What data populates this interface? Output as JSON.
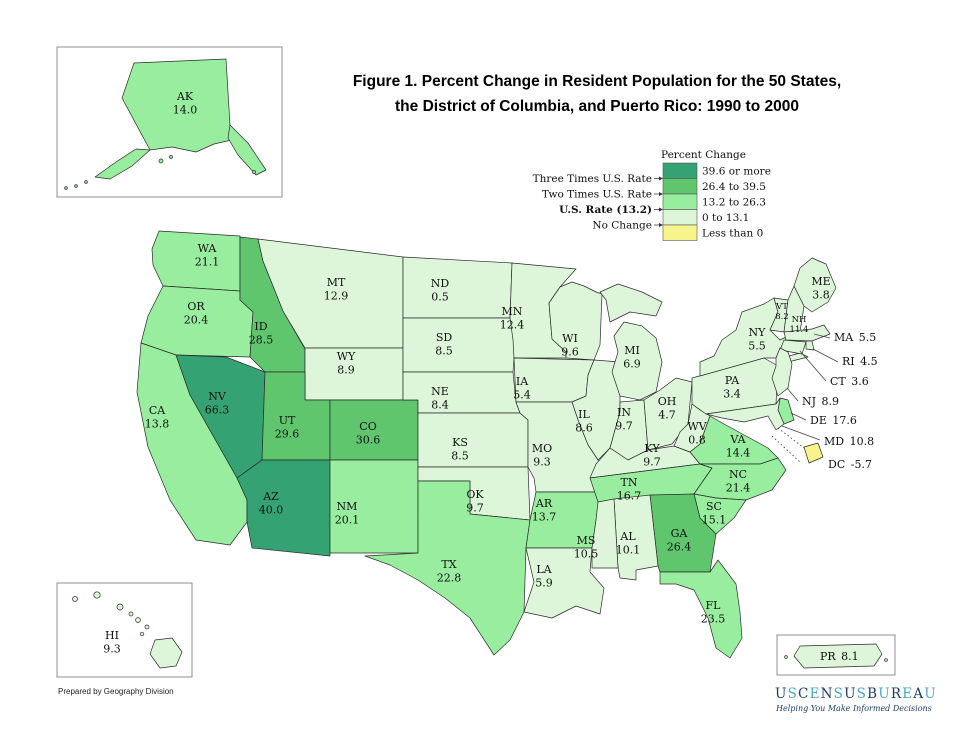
{
  "title": {
    "line1": "Figure 1.  Percent Change in Resident Population for the 50 States,",
    "line2": "the District of Columbia, and Puerto Rico: 1990 to 2000"
  },
  "legend": {
    "title": "Percent Change",
    "class_colors": {
      "c5": "#35a273",
      "c4": "#60c66e",
      "c3": "#98ee9e",
      "c2": "#ddf6da",
      "c1": "#f6f48b"
    },
    "classes": [
      {
        "id": "c5",
        "label": "39.6 or more",
        "color": "#35a273"
      },
      {
        "id": "c4",
        "label": "26.4 to 39.5",
        "color": "#60c66e"
      },
      {
        "id": "c3",
        "label": "13.2 to 26.3",
        "color": "#98ee9e"
      },
      {
        "id": "c2",
        "label": "0 to 13.1",
        "color": "#ddf6da"
      },
      {
        "id": "c1",
        "label": "Less than 0",
        "color": "#f6f48b"
      }
    ],
    "markers": [
      {
        "label": "Three Times U.S. Rate",
        "bold": false
      },
      {
        "label": "Two Times U.S. Rate",
        "bold": false
      },
      {
        "label": "U.S. Rate (13.2)",
        "bold": true
      },
      {
        "label": "No Change",
        "bold": false
      }
    ]
  },
  "states": [
    {
      "abbr": "WA",
      "value": "21.1",
      "cls": "c3"
    },
    {
      "abbr": "OR",
      "value": "20.4",
      "cls": "c3"
    },
    {
      "abbr": "CA",
      "value": "13.8",
      "cls": "c3"
    },
    {
      "abbr": "NV",
      "value": "66.3",
      "cls": "c5"
    },
    {
      "abbr": "ID",
      "value": "28.5",
      "cls": "c4"
    },
    {
      "abbr": "MT",
      "value": "12.9",
      "cls": "c2"
    },
    {
      "abbr": "WY",
      "value": "8.9",
      "cls": "c2"
    },
    {
      "abbr": "UT",
      "value": "29.6",
      "cls": "c4"
    },
    {
      "abbr": "CO",
      "value": "30.6",
      "cls": "c4"
    },
    {
      "abbr": "AZ",
      "value": "40.0",
      "cls": "c5"
    },
    {
      "abbr": "NM",
      "value": "20.1",
      "cls": "c3"
    },
    {
      "abbr": "TX",
      "value": "22.8",
      "cls": "c3"
    },
    {
      "abbr": "ND",
      "value": "0.5",
      "cls": "c2"
    },
    {
      "abbr": "SD",
      "value": "8.5",
      "cls": "c2"
    },
    {
      "abbr": "NE",
      "value": "8.4",
      "cls": "c2"
    },
    {
      "abbr": "KS",
      "value": "8.5",
      "cls": "c2"
    },
    {
      "abbr": "OK",
      "value": "9.7",
      "cls": "c2"
    },
    {
      "abbr": "MN",
      "value": "12.4",
      "cls": "c2"
    },
    {
      "abbr": "IA",
      "value": "5.4",
      "cls": "c2"
    },
    {
      "abbr": "MO",
      "value": "9.3",
      "cls": "c2"
    },
    {
      "abbr": "AR",
      "value": "13.7",
      "cls": "c3"
    },
    {
      "abbr": "LA",
      "value": "5.9",
      "cls": "c2"
    },
    {
      "abbr": "WI",
      "value": "9.6",
      "cls": "c2"
    },
    {
      "abbr": "IL",
      "value": "8.6",
      "cls": "c2"
    },
    {
      "abbr": "MI",
      "value": "6.9",
      "cls": "c2"
    },
    {
      "abbr": "IN",
      "value": "9.7",
      "cls": "c2"
    },
    {
      "abbr": "OH",
      "value": "4.7",
      "cls": "c2"
    },
    {
      "abbr": "KY",
      "value": "9.7",
      "cls": "c2"
    },
    {
      "abbr": "TN",
      "value": "16.7",
      "cls": "c3"
    },
    {
      "abbr": "WV",
      "value": "0.8",
      "cls": "c2"
    },
    {
      "abbr": "VA",
      "value": "14.4",
      "cls": "c3"
    },
    {
      "abbr": "NC",
      "value": "21.4",
      "cls": "c3"
    },
    {
      "abbr": "SC",
      "value": "15.1",
      "cls": "c3"
    },
    {
      "abbr": "GA",
      "value": "26.4",
      "cls": "c4"
    },
    {
      "abbr": "AL",
      "value": "10.1",
      "cls": "c2"
    },
    {
      "abbr": "MS",
      "value": "10.5",
      "cls": "c2"
    },
    {
      "abbr": "FL",
      "value": "23.5",
      "cls": "c3"
    },
    {
      "abbr": "PA",
      "value": "3.4",
      "cls": "c2"
    },
    {
      "abbr": "NY",
      "value": "5.5",
      "cls": "c2"
    },
    {
      "abbr": "ME",
      "value": "3.8",
      "cls": "c2"
    },
    {
      "abbr": "VT",
      "value": "8.2",
      "cls": "c2"
    },
    {
      "abbr": "NH",
      "value": "11.4",
      "cls": "c2"
    },
    {
      "abbr": "MA",
      "value": "5.5",
      "cls": "c2"
    },
    {
      "abbr": "RI",
      "value": "4.5",
      "cls": "c2"
    },
    {
      "abbr": "CT",
      "value": "3.6",
      "cls": "c2"
    },
    {
      "abbr": "NJ",
      "value": "8.9",
      "cls": "c2"
    },
    {
      "abbr": "DE",
      "value": "17.6",
      "cls": "c3"
    },
    {
      "abbr": "MD",
      "value": "10.8",
      "cls": "c2"
    },
    {
      "abbr": "DC",
      "value": "-5.7",
      "cls": "c1"
    },
    {
      "abbr": "AK",
      "value": "14.0",
      "cls": "c3"
    },
    {
      "abbr": "HI",
      "value": "9.3",
      "cls": "c2"
    },
    {
      "abbr": "PR",
      "value": "8.1",
      "cls": "c2"
    }
  ],
  "footer": {
    "credit": "Prepared by Geography Division"
  },
  "logo": {
    "wordmark": "USCENSUSBUREAU",
    "tagline": "Helping You Make Informed Decisions",
    "color_dark": "#1b3c6e",
    "color_light": "#4aa6c9"
  }
}
